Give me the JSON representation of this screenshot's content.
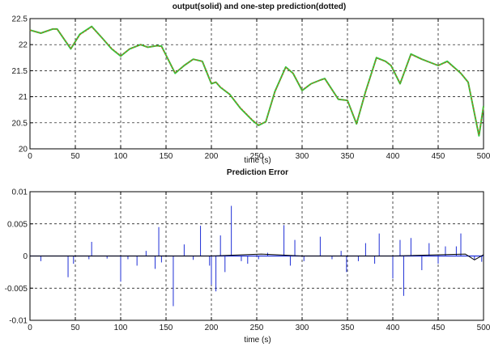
{
  "colors": {
    "output": "#2ecc40",
    "prediction": "#b85c1c",
    "error": "#1f2fd6",
    "axis": "#000000",
    "grid": "#000000"
  },
  "chart_data": [
    {
      "type": "line",
      "title": "output(solid) and one-step prediction(dotted)",
      "xlabel": "time (s)",
      "ylabel": "",
      "xlim": [
        0,
        500
      ],
      "ylim": [
        20,
        22.5
      ],
      "xticks": [
        0,
        50,
        100,
        150,
        200,
        250,
        300,
        350,
        400,
        450,
        500
      ],
      "yticks": [
        20,
        20.5,
        21,
        21.5,
        22,
        22.5
      ],
      "xtick_labels": [
        "0",
        "50",
        "100",
        "150",
        "200",
        "250",
        "300",
        "350",
        "400",
        "450",
        "500"
      ],
      "ytick_labels": [
        "20",
        "20.5",
        "21",
        "21.5",
        "22",
        "22.5"
      ],
      "grid": true,
      "series": [
        {
          "style": "solid",
          "color": "green",
          "x": [
            0,
            12,
            25,
            30,
            45,
            55,
            68,
            80,
            90,
            100,
            110,
            122,
            130,
            140,
            145,
            160,
            170,
            180,
            190,
            200,
            205,
            210,
            220,
            232,
            245,
            252,
            260,
            270,
            282,
            290,
            300,
            310,
            320,
            325,
            340,
            350,
            360,
            370,
            382,
            392,
            398,
            408,
            420,
            432,
            450,
            460,
            475,
            483,
            495,
            500
          ],
          "y": [
            22.28,
            22.22,
            22.3,
            22.3,
            21.92,
            22.2,
            22.35,
            22.12,
            21.92,
            21.78,
            21.92,
            22.0,
            21.95,
            21.98,
            21.97,
            21.45,
            21.6,
            21.72,
            21.68,
            21.25,
            21.28,
            21.18,
            21.05,
            20.78,
            20.55,
            20.45,
            20.52,
            21.1,
            21.57,
            21.45,
            21.12,
            21.25,
            21.32,
            21.35,
            20.95,
            20.93,
            20.48,
            21.1,
            21.75,
            21.68,
            21.6,
            21.25,
            21.82,
            21.72,
            21.6,
            21.68,
            21.45,
            21.28,
            20.25,
            20.82
          ]
        },
        {
          "style": "dotted",
          "color": "brown",
          "x": [
            0,
            12,
            25,
            30,
            45,
            55,
            68,
            80,
            90,
            100,
            110,
            122,
            130,
            140,
            145,
            160,
            170,
            180,
            190,
            200,
            205,
            210,
            220,
            232,
            245,
            252,
            260,
            270,
            282,
            290,
            300,
            310,
            320,
            325,
            340,
            350,
            360,
            370,
            382,
            392,
            398,
            408,
            420,
            432,
            450,
            460,
            475,
            483,
            495,
            500
          ],
          "y": [
            22.28,
            22.22,
            22.3,
            22.3,
            21.93,
            22.19,
            22.34,
            22.12,
            21.93,
            21.79,
            21.92,
            22.0,
            21.95,
            21.98,
            21.96,
            21.46,
            21.6,
            21.72,
            21.68,
            21.26,
            21.28,
            21.19,
            21.05,
            20.79,
            20.56,
            20.46,
            20.52,
            21.09,
            21.56,
            21.45,
            21.13,
            21.25,
            21.32,
            21.34,
            20.95,
            20.93,
            20.49,
            21.09,
            21.74,
            21.68,
            21.6,
            21.26,
            21.81,
            21.72,
            21.6,
            21.67,
            21.45,
            21.28,
            20.27,
            20.8
          ]
        }
      ]
    },
    {
      "type": "line",
      "title": "Prediction Error",
      "xlabel": "time (s)",
      "ylabel": "",
      "xlim": [
        0,
        500
      ],
      "ylim": [
        -0.01,
        0.01
      ],
      "xticks": [
        0,
        50,
        100,
        150,
        200,
        250,
        300,
        350,
        400,
        450,
        500
      ],
      "yticks": [
        -0.01,
        -0.005,
        0,
        0.005,
        0.01
      ],
      "xtick_labels": [
        "0",
        "50",
        "100",
        "150",
        "200",
        "250",
        "300",
        "350",
        "400",
        "450",
        "500"
      ],
      "ytick_labels": [
        "-0.01",
        "-0.005",
        "0",
        "0.005",
        "0.01"
      ],
      "grid": true,
      "series": [
        {
          "style": "solid",
          "color": "blue",
          "spikes": [
            [
              12,
              -0.0008
            ],
            [
              42,
              -0.0033
            ],
            [
              48,
              -0.0012
            ],
            [
              65,
              -0.0005
            ],
            [
              68,
              0.0022
            ],
            [
              85,
              -0.0004
            ],
            [
              100,
              -0.004
            ],
            [
              108,
              -0.0005
            ],
            [
              118,
              -0.0015
            ],
            [
              128,
              0.0008
            ],
            [
              138,
              -0.002
            ],
            [
              142,
              0.0045
            ],
            [
              145,
              -0.001
            ],
            [
              158,
              -0.0078
            ],
            [
              170,
              0.0018
            ],
            [
              180,
              -0.0006
            ],
            [
              188,
              0.0047
            ],
            [
              198,
              -0.0015
            ],
            [
              200,
              -0.0045
            ],
            [
              205,
              -0.0055
            ],
            [
              210,
              0.0032
            ],
            [
              215,
              -0.0025
            ],
            [
              222,
              0.0078
            ],
            [
              233,
              -0.0008
            ],
            [
              240,
              -0.0012
            ],
            [
              252,
              -0.0005
            ],
            [
              262,
              0.0005
            ],
            [
              280,
              0.0048
            ],
            [
              287,
              -0.0015
            ],
            [
              292,
              0.0025
            ],
            [
              302,
              -0.0008
            ],
            [
              320,
              0.003
            ],
            [
              333,
              -0.0005
            ],
            [
              343,
              0.0008
            ],
            [
              349,
              -0.0025
            ],
            [
              362,
              -0.0008
            ],
            [
              370,
              0.002
            ],
            [
              380,
              -0.0012
            ],
            [
              385,
              0.0035
            ],
            [
              400,
              -0.0035
            ],
            [
              408,
              0.0025
            ],
            [
              412,
              -0.0062
            ],
            [
              420,
              0.0028
            ],
            [
              432,
              -0.0022
            ],
            [
              440,
              0.002
            ],
            [
              450,
              -0.0012
            ],
            [
              458,
              0.0015
            ],
            [
              470,
              0.0015
            ],
            [
              475,
              0.0035
            ],
            [
              490,
              -0.0005
            ],
            [
              498,
              -0.0009
            ]
          ]
        },
        {
          "style": "solid",
          "color": "black",
          "x": [
            0,
            100,
            200,
            255,
            270,
            300,
            400,
            480,
            490,
            500
          ],
          "y": [
            0,
            0,
            0,
            0.0003,
            0.0002,
            0,
            0,
            0.0003,
            -0.0006,
            0.0002
          ]
        }
      ]
    }
  ]
}
